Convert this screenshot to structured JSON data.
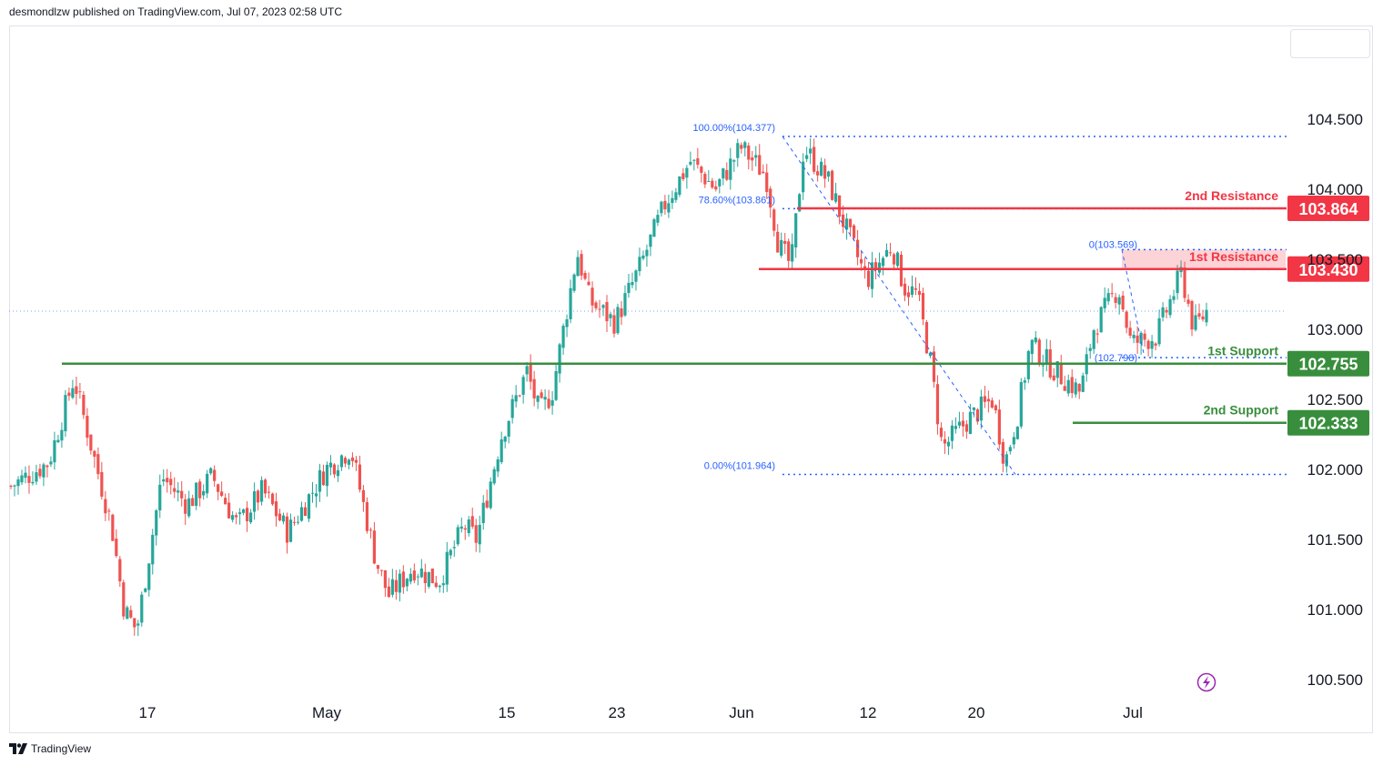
{
  "header": {
    "publisher": "desmondlzw published on TradingView.com, Jul 07, 2023 02:58 UTC"
  },
  "footer": {
    "brand": "TradingView"
  },
  "colors": {
    "up": "#26a69a",
    "down": "#ef5350",
    "resistance": "#f23645",
    "support": "#388e3c",
    "fib": "#2962ff",
    "grid": "#e0e3eb"
  },
  "icons": {
    "footer_logo": "tradingview-logo-icon",
    "replay": "lightning-icon"
  },
  "chart_data": {
    "type": "candlestick",
    "instrument": "",
    "y_axis": {
      "ticks": [
        "104.500",
        "104.000",
        "103.500",
        "103.000",
        "102.500",
        "102.000",
        "101.500",
        "101.000",
        "100.500"
      ],
      "ylim": [
        100.35,
        104.95
      ]
    },
    "x_axis": {
      "ticks": [
        "17",
        "May",
        "15",
        "23",
        "Jun",
        "12",
        "20",
        "Jul"
      ]
    },
    "levels": [
      {
        "name": "2nd Resistance",
        "value": "103.864",
        "kind": "resistance"
      },
      {
        "name": "1st Resistance",
        "value": "103.430",
        "kind": "resistance"
      },
      {
        "name": "1st Support",
        "value": "102.755",
        "kind": "support"
      },
      {
        "name": "2nd Support",
        "value": "102.333",
        "kind": "support"
      }
    ],
    "fib_retracement_1": [
      {
        "label": "100.00%(104.377)",
        "value": 104.377
      },
      {
        "label": "78.60%(103.861)",
        "value": 103.861
      },
      {
        "label": "0.00%(101.964)",
        "value": 101.964
      }
    ],
    "fib_retracement_2": [
      {
        "label": "0(103.569)",
        "value": 103.569
      },
      {
        "label": "(102.798)",
        "value": 102.798
      }
    ],
    "current_price": 103.13,
    "close_path": [
      [
        0,
        101.88
      ],
      [
        0.03,
        102.05
      ],
      [
        0.05,
        102.65
      ],
      [
        0.06,
        102.3
      ],
      [
        0.08,
        101.6
      ],
      [
        0.09,
        101.0
      ],
      [
        0.1,
        100.85
      ],
      [
        0.12,
        101.95
      ],
      [
        0.14,
        101.75
      ],
      [
        0.16,
        101.95
      ],
      [
        0.18,
        101.6
      ],
      [
        0.2,
        101.85
      ],
      [
        0.22,
        101.55
      ],
      [
        0.25,
        102.0
      ],
      [
        0.27,
        102.15
      ],
      [
        0.29,
        101.35
      ],
      [
        0.3,
        101.1
      ],
      [
        0.32,
        101.3
      ],
      [
        0.34,
        101.2
      ],
      [
        0.36,
        101.6
      ],
      [
        0.37,
        101.5
      ],
      [
        0.39,
        102.25
      ],
      [
        0.41,
        102.7
      ],
      [
        0.42,
        102.4
      ],
      [
        0.43,
        102.55
      ],
      [
        0.45,
        103.55
      ],
      [
        0.46,
        103.2
      ],
      [
        0.48,
        103.05
      ],
      [
        0.5,
        103.45
      ],
      [
        0.52,
        103.9
      ],
      [
        0.54,
        104.2
      ],
      [
        0.56,
        104.0
      ],
      [
        0.58,
        104.3
      ],
      [
        0.6,
        104.1
      ],
      [
        0.61,
        103.6
      ],
      [
        0.62,
        103.45
      ],
      [
        0.63,
        104.3
      ],
      [
        0.65,
        104.05
      ],
      [
        0.66,
        103.8
      ],
      [
        0.68,
        103.35
      ],
      [
        0.7,
        103.6
      ],
      [
        0.71,
        103.3
      ],
      [
        0.72,
        103.25
      ],
      [
        0.73,
        102.8
      ],
      [
        0.74,
        102.15
      ],
      [
        0.76,
        102.35
      ],
      [
        0.78,
        102.5
      ],
      [
        0.79,
        102.05
      ],
      [
        0.8,
        102.4
      ],
      [
        0.81,
        102.9
      ],
      [
        0.83,
        102.7
      ],
      [
        0.85,
        102.55
      ],
      [
        0.86,
        103.0
      ],
      [
        0.88,
        103.3
      ],
      [
        0.89,
        102.9
      ],
      [
        0.91,
        102.95
      ],
      [
        0.93,
        103.4
      ],
      [
        0.94,
        103.0
      ],
      [
        0.95,
        103.13
      ]
    ]
  }
}
